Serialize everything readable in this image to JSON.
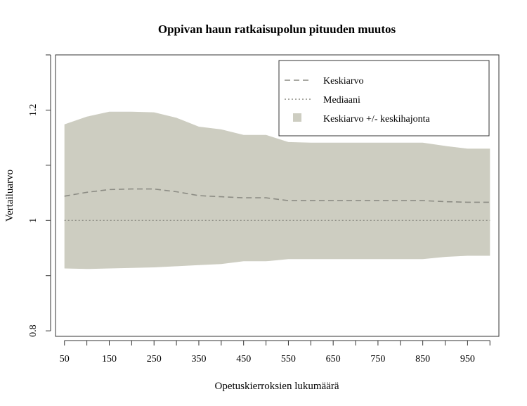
{
  "chart_data": {
    "type": "line",
    "title": "Oppivan haun ratkaisupolun pituuden muutos",
    "xlabel": "Opetuskierroksien lukumäärä",
    "ylabel": "Vertailuarvo",
    "x": [
      50,
      100,
      150,
      200,
      250,
      300,
      350,
      400,
      450,
      500,
      550,
      600,
      650,
      700,
      750,
      800,
      850,
      900,
      950,
      1000
    ],
    "xticks": [
      50,
      100,
      150,
      200,
      250,
      300,
      350,
      400,
      450,
      500,
      550,
      600,
      650,
      700,
      750,
      800,
      850,
      900,
      950,
      1000
    ],
    "xtick_labels": [
      "50",
      "150",
      "250",
      "350",
      "450",
      "550",
      "650",
      "750",
      "850",
      "950"
    ],
    "xlim": [
      30,
      1020
    ],
    "yticks": [
      0.8,
      0.9,
      1.0,
      1.1,
      1.2,
      1.3
    ],
    "ytick_labels": [
      "0.8",
      "1",
      "1.2"
    ],
    "ylim": [
      0.79,
      1.3
    ],
    "series": [
      {
        "name": "Keskiarvo",
        "style": "dashed",
        "color": "#8c8c84",
        "values": [
          1.044,
          1.051,
          1.056,
          1.057,
          1.057,
          1.052,
          1.045,
          1.043,
          1.041,
          1.041,
          1.036,
          1.036,
          1.036,
          1.036,
          1.036,
          1.036,
          1.036,
          1.034,
          1.033,
          1.033
        ]
      },
      {
        "name": "Mediaani",
        "style": "dotted",
        "color": "#8c8c84",
        "values": [
          1.0,
          1.0,
          1.0,
          1.0,
          1.0,
          1.0,
          1.0,
          1.0,
          1.0,
          1.0,
          1.0,
          1.0,
          1.0,
          1.0,
          1.0,
          1.0,
          1.0,
          1.0,
          1.0,
          1.0
        ]
      }
    ],
    "band": {
      "name": "Keskiarvo +/- keskihajonta",
      "color": "#cdcdc1",
      "upper": [
        1.174,
        1.188,
        1.197,
        1.197,
        1.196,
        1.186,
        1.17,
        1.165,
        1.155,
        1.155,
        1.142,
        1.141,
        1.141,
        1.141,
        1.141,
        1.141,
        1.141,
        1.135,
        1.13,
        1.13
      ],
      "lower": [
        0.913,
        0.912,
        0.913,
        0.914,
        0.915,
        0.917,
        0.919,
        0.921,
        0.926,
        0.926,
        0.93,
        0.93,
        0.93,
        0.93,
        0.93,
        0.93,
        0.93,
        0.934,
        0.936,
        0.936
      ]
    },
    "legend": {
      "placement": "top-right",
      "entries": [
        "Keskiarvo",
        "Mediaani",
        "Keskiarvo +/- keskihajonta"
      ]
    },
    "grid": false
  }
}
